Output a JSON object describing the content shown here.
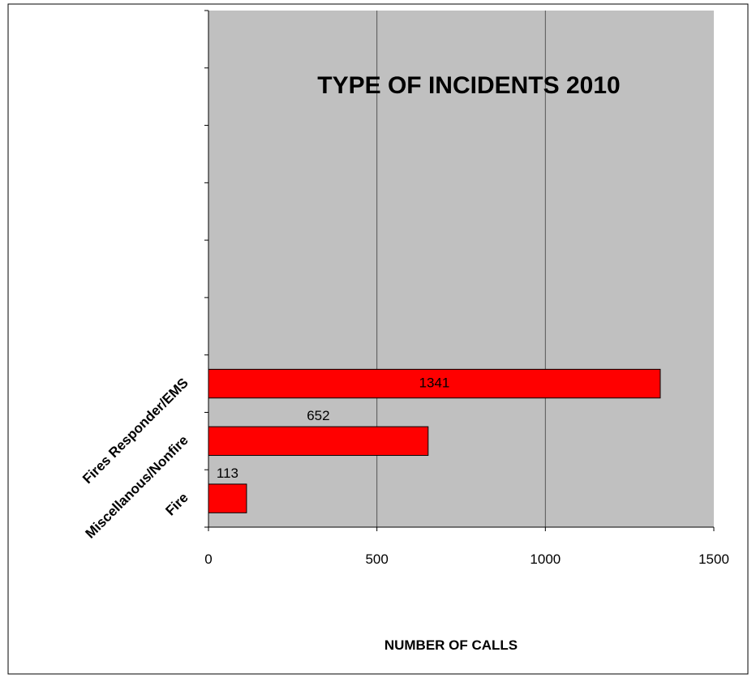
{
  "chart_data": {
    "type": "bar",
    "orientation": "horizontal",
    "title": "TYPE OF INCIDENTS  2010",
    "xlabel": "NUMBER OF CALLS",
    "ylabel": "",
    "categories": [
      "Fire",
      "Miscellanous/Nonfire",
      "Fires Responder/EMS"
    ],
    "values": [
      113,
      652,
      1341
    ],
    "data_labels": [
      "113",
      "652",
      "1341"
    ],
    "xlim": [
      0,
      1500
    ],
    "x_ticks": [
      0,
      500,
      1000,
      1500
    ],
    "x_tick_labels": [
      "0",
      "500",
      "1000",
      "1500"
    ],
    "grid": "vertical",
    "legend": "none",
    "colors": {
      "bar": "#ff0000",
      "plot_background": "#c0c0c0",
      "gridline": "#555555",
      "border": "#000000"
    }
  }
}
